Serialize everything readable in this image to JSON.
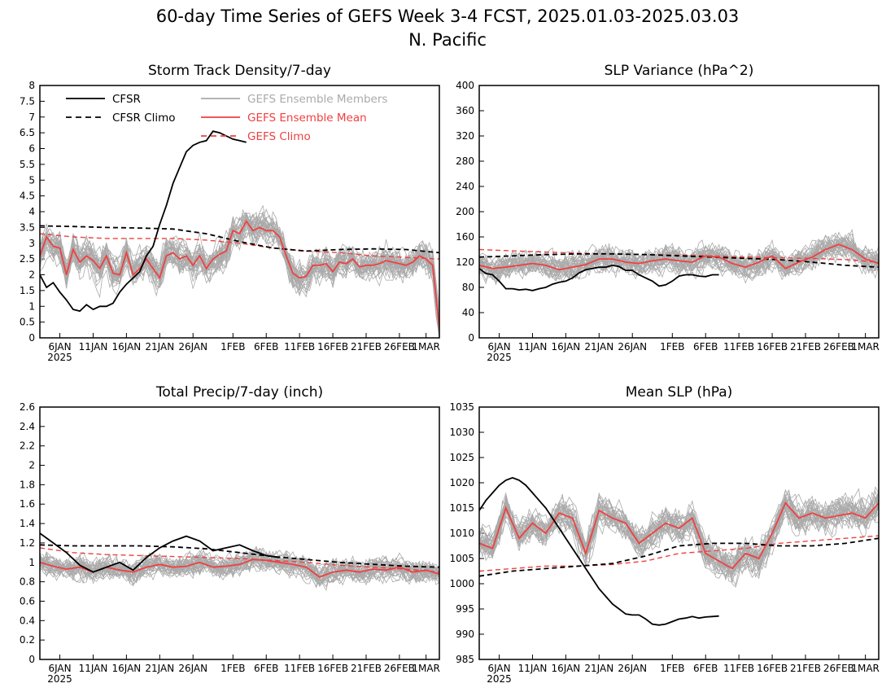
{
  "figure": {
    "title_line1": "60-day Time Series of GEFS Week 3-4 FCST, 2025.01.03-2025.03.03",
    "title_line2": "N. Pacific"
  },
  "legend": [
    {
      "label": "CFSR",
      "color": "#000000",
      "dash": "solid"
    },
    {
      "label": "CFSR Climo",
      "color": "#000000",
      "dash": "dashed"
    },
    {
      "label": "GEFS Ensemble Members",
      "color": "#aaaaaa",
      "dash": "solid"
    },
    {
      "label": "GEFS Ensemble Mean",
      "color": "#f04040",
      "dash": "solid"
    },
    {
      "label": "GEFS Climo",
      "color": "#f04040",
      "dash": "dashed"
    }
  ],
  "x_axis": {
    "tick_days": [
      3,
      8,
      13,
      18,
      23,
      29,
      34,
      39,
      44,
      49,
      54,
      58
    ],
    "tick_labels": [
      "6JAN",
      "11JAN",
      "16JAN",
      "21JAN",
      "26JAN",
      "1FEB",
      "6FEB",
      "11FEB",
      "16FEB",
      "21FEB",
      "26FEB",
      "1MAR"
    ],
    "year_label": "2025"
  },
  "chart_data": [
    {
      "type": "line",
      "title": "Storm Track Density/7-day",
      "ylim": [
        0,
        8
      ],
      "yticks": [
        0,
        0.5,
        1,
        1.5,
        2,
        2.5,
        3,
        3.5,
        4,
        4.5,
        5,
        5.5,
        6,
        6.5,
        7,
        7.5,
        8
      ],
      "ytick_labels": [
        "0",
        "0.5",
        "1",
        "1.5",
        "2",
        "2.5",
        "3",
        "3.5",
        "4",
        "4.5",
        "5",
        "5.5",
        "6",
        "6.5",
        "7",
        "7.5",
        "8"
      ],
      "members": {
        "count": 30,
        "spread": 0.9
      },
      "series": [
        {
          "name": "CFSR",
          "x": [
            0,
            1,
            2,
            3,
            4,
            5,
            6,
            7,
            8,
            9,
            10,
            11,
            12,
            13,
            14,
            15,
            16,
            17,
            18,
            19,
            20,
            21,
            22,
            23,
            24,
            25,
            26,
            27,
            28,
            29,
            30,
            31
          ],
          "values": [
            2.0,
            1.6,
            1.75,
            1.45,
            1.2,
            0.9,
            0.85,
            1.05,
            0.9,
            1.0,
            1.0,
            1.1,
            1.45,
            1.7,
            1.9,
            2.1,
            2.6,
            2.9,
            3.6,
            4.2,
            4.9,
            5.4,
            5.9,
            6.1,
            6.2,
            6.25,
            6.55,
            6.5,
            6.4,
            6.3,
            6.25,
            6.2
          ]
        },
        {
          "name": "CFSR Climo",
          "x": [
            0,
            5,
            10,
            15,
            20,
            25,
            30,
            35,
            40,
            45,
            50,
            55,
            60
          ],
          "values": [
            3.55,
            3.53,
            3.5,
            3.48,
            3.45,
            3.3,
            3.05,
            2.85,
            2.75,
            2.8,
            2.82,
            2.8,
            2.7
          ]
        },
        {
          "name": "GEFS Ensemble Mean",
          "x": [
            0,
            1,
            2,
            3,
            4,
            5,
            6,
            7,
            8,
            9,
            10,
            11,
            12,
            13,
            14,
            15,
            16,
            17,
            18,
            19,
            20,
            21,
            22,
            23,
            24,
            25,
            26,
            27,
            28,
            29,
            30,
            31,
            32,
            33,
            34,
            35,
            36,
            37,
            38,
            39,
            40,
            41,
            42,
            43,
            44,
            45,
            46,
            47,
            48,
            49,
            50,
            51,
            52,
            53,
            54,
            55,
            56,
            57,
            58,
            59,
            60
          ],
          "values": [
            2.6,
            3.2,
            2.9,
            2.85,
            2.0,
            2.8,
            2.4,
            2.6,
            2.45,
            2.2,
            2.6,
            2.05,
            2.0,
            2.7,
            2.0,
            2.2,
            2.5,
            2.2,
            1.9,
            2.6,
            2.7,
            2.5,
            2.6,
            2.3,
            2.6,
            2.2,
            2.5,
            2.65,
            2.75,
            3.4,
            3.3,
            3.7,
            3.4,
            3.5,
            3.4,
            3.4,
            3.2,
            2.6,
            2.05,
            1.9,
            1.95,
            2.3,
            2.3,
            2.35,
            2.1,
            2.4,
            2.35,
            2.5,
            2.25,
            2.3,
            2.3,
            2.35,
            2.45,
            2.4,
            2.35,
            2.3,
            2.4,
            2.6,
            2.5,
            2.3,
            0.3
          ]
        },
        {
          "name": "GEFS Climo",
          "x": [
            0,
            5,
            10,
            15,
            20,
            25,
            30,
            35,
            40,
            45,
            50,
            55,
            60
          ],
          "values": [
            3.3,
            3.2,
            3.15,
            3.15,
            3.15,
            3.1,
            3.0,
            2.85,
            2.75,
            2.7,
            2.6,
            2.55,
            2.5
          ]
        }
      ]
    },
    {
      "type": "line",
      "title": "SLP Variance (hPa^2)",
      "ylim": [
        0,
        400
      ],
      "yticks": [
        0,
        40,
        80,
        120,
        160,
        200,
        240,
        280,
        320,
        360,
        400
      ],
      "ytick_labels": [
        "0",
        "40",
        "80",
        "120",
        "160",
        "200",
        "240",
        "280",
        "320",
        "360",
        "400"
      ],
      "members": {
        "count": 30,
        "spread": 35
      },
      "series": [
        {
          "name": "CFSR",
          "x": [
            0,
            1,
            2,
            3,
            4,
            5,
            6,
            7,
            8,
            9,
            10,
            11,
            12,
            13,
            14,
            15,
            16,
            17,
            18,
            19,
            20,
            21,
            22,
            23,
            24,
            25,
            26,
            27,
            28,
            29,
            30,
            31,
            32,
            33,
            34,
            35,
            36
          ],
          "values": [
            110,
            102,
            100,
            90,
            78,
            78,
            76,
            77,
            75,
            78,
            80,
            85,
            88,
            90,
            95,
            103,
            108,
            110,
            112,
            112,
            115,
            113,
            107,
            107,
            100,
            95,
            90,
            82,
            84,
            90,
            98,
            100,
            100,
            98,
            97,
            100,
            100
          ]
        },
        {
          "name": "CFSR Climo",
          "x": [
            0,
            5,
            10,
            15,
            20,
            25,
            30,
            35,
            40,
            45,
            50,
            55,
            60
          ],
          "values": [
            128,
            130,
            132,
            133,
            133,
            132,
            130,
            128,
            126,
            124,
            120,
            115,
            112
          ]
        },
        {
          "name": "GEFS Ensemble Mean",
          "x": [
            0,
            2,
            4,
            6,
            8,
            10,
            12,
            14,
            16,
            18,
            20,
            22,
            24,
            26,
            28,
            30,
            32,
            34,
            36,
            38,
            40,
            42,
            44,
            46,
            48,
            50,
            52,
            54,
            56,
            58,
            60
          ],
          "values": [
            115,
            110,
            112,
            115,
            118,
            115,
            108,
            112,
            116,
            125,
            125,
            120,
            118,
            122,
            125,
            122,
            120,
            130,
            128,
            118,
            112,
            120,
            130,
            110,
            120,
            128,
            140,
            148,
            140,
            125,
            118
          ]
        },
        {
          "name": "GEFS Climo",
          "x": [
            0,
            5,
            10,
            15,
            20,
            25,
            30,
            35,
            40,
            45,
            50,
            55,
            60
          ],
          "values": [
            140,
            138,
            136,
            134,
            133,
            132,
            131,
            130,
            128,
            127,
            126,
            124,
            120
          ]
        }
      ]
    },
    {
      "type": "line",
      "title": "Total Precip/7-day (inch)",
      "ylim": [
        0,
        2.6
      ],
      "yticks": [
        0,
        0.2,
        0.4,
        0.6,
        0.8,
        1,
        1.2,
        1.4,
        1.6,
        1.8,
        2,
        2.2,
        2.4,
        2.6
      ],
      "ytick_labels": [
        "0",
        "0.2",
        "0.4",
        "0.6",
        "0.8",
        "1",
        "1.2",
        "1.4",
        "1.6",
        "1.8",
        "2",
        "2.2",
        "2.4",
        "2.6"
      ],
      "members": {
        "count": 30,
        "spread": 0.2
      },
      "series": [
        {
          "name": "CFSR",
          "x": [
            0,
            2,
            4,
            6,
            8,
            10,
            12,
            14,
            16,
            18,
            20,
            22,
            24,
            26,
            28,
            30,
            32,
            34,
            36
          ],
          "values": [
            1.3,
            1.2,
            1.1,
            0.97,
            0.9,
            0.95,
            1.0,
            0.92,
            1.05,
            1.15,
            1.22,
            1.27,
            1.22,
            1.12,
            1.15,
            1.18,
            1.12,
            1.07,
            1.05
          ]
        },
        {
          "name": "CFSR Climo",
          "x": [
            0,
            5,
            10,
            15,
            20,
            25,
            30,
            35,
            40,
            45,
            50,
            55,
            60
          ],
          "values": [
            1.18,
            1.17,
            1.17,
            1.17,
            1.16,
            1.14,
            1.1,
            1.06,
            1.03,
            1.0,
            0.98,
            0.96,
            0.95
          ]
        },
        {
          "name": "GEFS Ensemble Mean",
          "x": [
            0,
            2,
            4,
            6,
            8,
            10,
            12,
            14,
            16,
            18,
            20,
            22,
            24,
            26,
            28,
            30,
            32,
            34,
            36,
            38,
            40,
            42,
            44,
            46,
            48,
            50,
            52,
            54,
            56,
            58,
            60
          ],
          "values": [
            1.0,
            0.96,
            0.93,
            0.95,
            0.9,
            0.95,
            0.92,
            0.9,
            0.95,
            0.98,
            0.95,
            0.96,
            1.0,
            0.95,
            0.96,
            0.98,
            1.03,
            1.02,
            1.0,
            0.98,
            0.95,
            0.85,
            0.9,
            0.92,
            0.9,
            0.93,
            0.92,
            0.95,
            0.9,
            0.92,
            0.88
          ]
        },
        {
          "name": "GEFS Climo",
          "x": [
            0,
            5,
            10,
            15,
            20,
            25,
            30,
            35,
            40,
            45,
            50,
            55,
            60
          ],
          "values": [
            1.15,
            1.1,
            1.08,
            1.07,
            1.06,
            1.05,
            1.04,
            1.02,
            1.0,
            0.97,
            0.95,
            0.93,
            0.9
          ]
        }
      ]
    },
    {
      "type": "line",
      "title": "Mean SLP (hPa)",
      "ylim": [
        985,
        1035
      ],
      "yticks": [
        985,
        990,
        995,
        1000,
        1005,
        1010,
        1015,
        1020,
        1025,
        1030,
        1035
      ],
      "ytick_labels": [
        "985",
        "990",
        "995",
        "1000",
        "1005",
        "1010",
        "1015",
        "1020",
        "1025",
        "1030",
        "1035"
      ],
      "members": {
        "count": 30,
        "spread": 5.5
      },
      "series": [
        {
          "name": "CFSR",
          "x": [
            0,
            1,
            2,
            3,
            4,
            5,
            6,
            7,
            8,
            9,
            10,
            11,
            12,
            13,
            14,
            15,
            16,
            17,
            18,
            19,
            20,
            21,
            22,
            23,
            24,
            25,
            26,
            27,
            28,
            29,
            30,
            31,
            32,
            33,
            34,
            35,
            36
          ],
          "values": [
            1014.5,
            1016.5,
            1018.0,
            1019.5,
            1020.5,
            1021.0,
            1020.5,
            1019.5,
            1018.0,
            1016.5,
            1015.0,
            1013.0,
            1011.0,
            1009.0,
            1007.0,
            1005.0,
            1003.0,
            1001.0,
            999.0,
            997.5,
            996.0,
            995.0,
            994.0,
            993.8,
            993.8,
            993.0,
            992.0,
            991.8,
            992.0,
            992.5,
            993.0,
            993.2,
            993.5,
            993.2,
            993.4,
            993.5,
            993.6
          ]
        },
        {
          "name": "CFSR Climo",
          "x": [
            0,
            5,
            10,
            15,
            20,
            25,
            30,
            35,
            40,
            45,
            50,
            55,
            60
          ],
          "values": [
            1001.5,
            1002.5,
            1003.0,
            1003.5,
            1004.0,
            1005.5,
            1007.5,
            1008.0,
            1008.0,
            1007.5,
            1007.5,
            1008.0,
            1009.0
          ]
        },
        {
          "name": "GEFS Ensemble Mean",
          "x": [
            0,
            2,
            4,
            6,
            8,
            10,
            12,
            14,
            16,
            18,
            20,
            22,
            24,
            26,
            28,
            30,
            32,
            34,
            36,
            38,
            40,
            42,
            44,
            46,
            48,
            50,
            52,
            54,
            56,
            58,
            60
          ],
          "values": [
            1008.0,
            1007.0,
            1015.0,
            1009.0,
            1012.0,
            1010.0,
            1014.0,
            1013.0,
            1006.0,
            1014.5,
            1013.0,
            1012.0,
            1008.0,
            1010.0,
            1012.0,
            1011.0,
            1013.0,
            1006.0,
            1004.5,
            1003.0,
            1006.0,
            1005.0,
            1010.0,
            1016.0,
            1013.0,
            1014.0,
            1013.0,
            1013.5,
            1014.0,
            1013.0,
            1016.0
          ]
        },
        {
          "name": "GEFS Climo",
          "x": [
            0,
            5,
            10,
            15,
            20,
            25,
            30,
            35,
            40,
            45,
            50,
            55,
            60
          ],
          "values": [
            1002.5,
            1003.0,
            1003.5,
            1003.5,
            1003.8,
            1004.5,
            1006.0,
            1006.5,
            1007.0,
            1008.0,
            1008.5,
            1009.0,
            1009.5
          ]
        }
      ]
    }
  ]
}
